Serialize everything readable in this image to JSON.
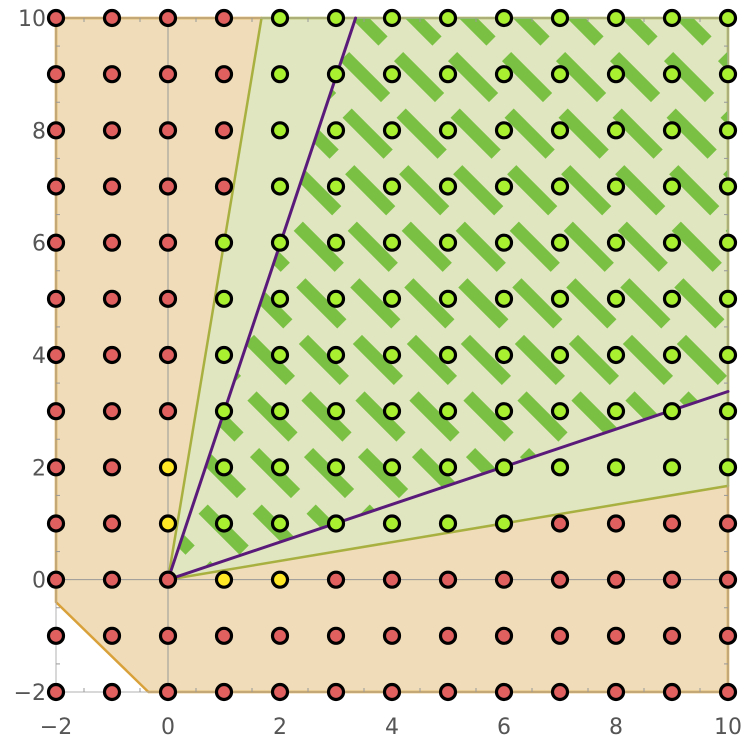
{
  "chart_data": {
    "type": "scatter",
    "xlim": [
      -2,
      10
    ],
    "ylim": [
      -2,
      10
    ],
    "x_ticks": [
      -2,
      0,
      2,
      4,
      6,
      8,
      10
    ],
    "y_ticks": [
      -2,
      0,
      2,
      4,
      6,
      8,
      10
    ],
    "x_tick_labels": [
      "−2",
      "0",
      "2",
      "4",
      "6",
      "8",
      "10"
    ],
    "y_tick_labels": [
      "−2",
      "0",
      "2",
      "4",
      "6",
      "8",
      "10"
    ],
    "grid": false,
    "lattice": {
      "x": [
        -2,
        10
      ],
      "y": [
        -2,
        10
      ],
      "step": 1
    },
    "regions": [
      {
        "name": "outer",
        "polygon": [
          [
            -2,
            -0.4
          ],
          [
            -0.35,
            -2
          ],
          [
            10,
            -2
          ],
          [
            10,
            1.67
          ],
          [
            1.67,
            10
          ],
          [
            -2,
            10
          ]
        ],
        "fill": "#f0dcb8",
        "stroke": "#d9a13a"
      },
      {
        "name": "green-cone",
        "polygon": [
          [
            0,
            0
          ],
          [
            10,
            1.67
          ],
          [
            10,
            10
          ],
          [
            1.67,
            10
          ]
        ],
        "fill": "#dfe6c0",
        "stroke": "#a8b040"
      },
      {
        "name": "hatched-cone",
        "polygon": [
          [
            0,
            0
          ],
          [
            10,
            3.35
          ],
          [
            10,
            10
          ],
          [
            3.35,
            10
          ]
        ],
        "hatch_color": "#7ac143"
      }
    ],
    "rays": [
      {
        "from": [
          0,
          0
        ],
        "to": [
          10,
          3.35
        ],
        "color": "#5a1a7a"
      },
      {
        "from": [
          0,
          0
        ],
        "to": [
          3.35,
          10
        ],
        "color": "#5a1a7a"
      }
    ],
    "point_colors": {
      "red": "#e06060",
      "green": "#a8f030",
      "yellow": "#ffe826",
      "outline": "#000000"
    },
    "yellow_points": [
      [
        0,
        1
      ],
      [
        0,
        2
      ],
      [
        1,
        0
      ],
      [
        2,
        0
      ]
    ]
  }
}
